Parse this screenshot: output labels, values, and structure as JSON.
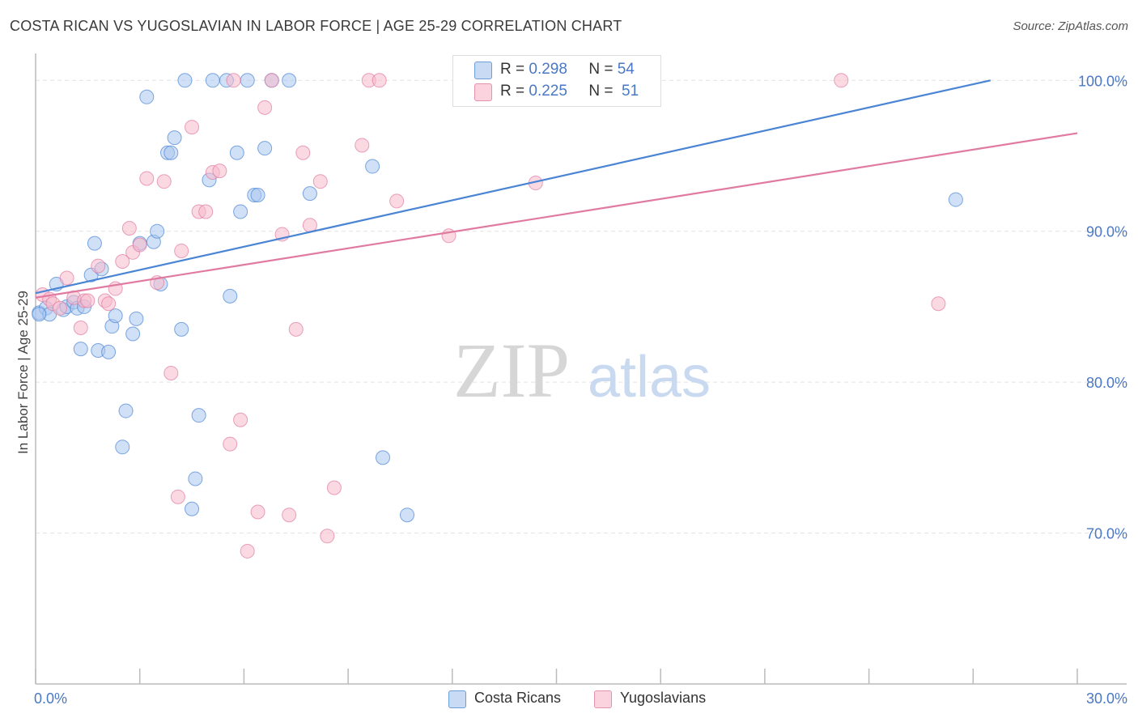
{
  "title": "COSTA RICAN VS YUGOSLAVIAN IN LABOR FORCE | AGE 25-29 CORRELATION CHART",
  "source": "Source: ZipAtlas.com",
  "watermark": {
    "zip": "ZIP",
    "atlas": "atlas"
  },
  "legend": {
    "r_label": "R =",
    "n_label": "N =",
    "rows": [
      {
        "r": "0.298",
        "n": "54",
        "color": "#a9c6ee"
      },
      {
        "r": "0.225",
        "n": "51",
        "color": "#f7b9cc"
      }
    ]
  },
  "chart_data": {
    "type": "scatter",
    "xlabel": "",
    "ylabel": "In Labor Force | Age 25-29",
    "xlim": [
      0,
      30
    ],
    "ylim": [
      60,
      102
    ],
    "x_tick_labels": [
      "0.0%",
      "30.0%"
    ],
    "y_ticks": [
      70,
      80,
      90,
      100
    ],
    "y_tick_labels": [
      "70.0%",
      "80.0%",
      "90.0%",
      "100.0%"
    ],
    "grid": true,
    "legend_position": "top-center",
    "series": [
      {
        "name": "Costa Ricans",
        "color": "#4a84d4",
        "fill": "#a9c6ee",
        "trend": {
          "x0": 0,
          "y0": 85.9,
          "x1": 27.5,
          "y1": 100
        },
        "points": [
          [
            0.1,
            84.6
          ],
          [
            0.3,
            84.9
          ],
          [
            0.4,
            84.5
          ],
          [
            0.6,
            86.5
          ],
          [
            0.8,
            84.8
          ],
          [
            0.9,
            85.0
          ],
          [
            1.1,
            85.3
          ],
          [
            1.2,
            84.9
          ],
          [
            1.4,
            85.0
          ],
          [
            1.6,
            87.1
          ],
          [
            1.7,
            89.2
          ],
          [
            1.9,
            87.5
          ],
          [
            1.3,
            82.2
          ],
          [
            1.8,
            82.1
          ],
          [
            2.1,
            82.0
          ],
          [
            2.2,
            83.7
          ],
          [
            2.3,
            84.4
          ],
          [
            2.5,
            75.7
          ],
          [
            2.6,
            78.1
          ],
          [
            2.8,
            83.2
          ],
          [
            2.9,
            84.2
          ],
          [
            3.0,
            89.2
          ],
          [
            3.2,
            98.9
          ],
          [
            3.4,
            89.3
          ],
          [
            3.5,
            90.0
          ],
          [
            3.6,
            86.5
          ],
          [
            3.8,
            95.2
          ],
          [
            3.9,
            95.2
          ],
          [
            4.0,
            96.2
          ],
          [
            4.2,
            83.5
          ],
          [
            4.3,
            100.0
          ],
          [
            4.5,
            71.6
          ],
          [
            4.6,
            73.6
          ],
          [
            4.7,
            77.8
          ],
          [
            5.1,
            100.0
          ],
          [
            5.0,
            93.4
          ],
          [
            5.5,
            100.0
          ],
          [
            5.6,
            85.7
          ],
          [
            5.8,
            95.2
          ],
          [
            5.9,
            91.3
          ],
          [
            6.1,
            100.0
          ],
          [
            6.3,
            92.4
          ],
          [
            6.4,
            92.4
          ],
          [
            6.6,
            95.5
          ],
          [
            6.8,
            100.0
          ],
          [
            7.3,
            100.0
          ],
          [
            7.9,
            92.5
          ],
          [
            9.7,
            94.3
          ],
          [
            10.0,
            75.0
          ],
          [
            10.7,
            71.2
          ],
          [
            15.4,
            100.0
          ],
          [
            16.5,
            100.0
          ],
          [
            26.5,
            92.1
          ],
          [
            0.1,
            84.5
          ]
        ]
      },
      {
        "name": "Yugoslavians",
        "color": "#e07aa0",
        "fill": "#f7b9cc",
        "trend": {
          "x0": 0,
          "y0": 85.6,
          "x1": 30,
          "y1": 96.5
        },
        "points": [
          [
            0.2,
            85.8
          ],
          [
            0.4,
            85.5
          ],
          [
            0.5,
            85.2
          ],
          [
            0.7,
            84.9
          ],
          [
            0.9,
            86.9
          ],
          [
            1.1,
            85.6
          ],
          [
            1.3,
            83.6
          ],
          [
            1.4,
            85.4
          ],
          [
            1.5,
            85.4
          ],
          [
            1.8,
            87.7
          ],
          [
            2.0,
            85.4
          ],
          [
            2.1,
            85.2
          ],
          [
            2.3,
            86.2
          ],
          [
            2.5,
            88.0
          ],
          [
            2.7,
            90.2
          ],
          [
            2.8,
            88.6
          ],
          [
            3.0,
            89.1
          ],
          [
            3.2,
            93.5
          ],
          [
            3.5,
            86.6
          ],
          [
            3.7,
            93.3
          ],
          [
            3.9,
            80.6
          ],
          [
            4.1,
            72.4
          ],
          [
            4.2,
            88.7
          ],
          [
            4.5,
            96.9
          ],
          [
            4.7,
            91.3
          ],
          [
            4.9,
            91.3
          ],
          [
            5.1,
            93.9
          ],
          [
            5.3,
            94.0
          ],
          [
            5.6,
            75.9
          ],
          [
            5.7,
            100.0
          ],
          [
            5.9,
            77.5
          ],
          [
            6.1,
            68.8
          ],
          [
            6.4,
            71.4
          ],
          [
            6.6,
            98.2
          ],
          [
            6.8,
            100.0
          ],
          [
            7.1,
            89.8
          ],
          [
            7.3,
            71.2
          ],
          [
            7.5,
            83.5
          ],
          [
            7.7,
            95.2
          ],
          [
            7.9,
            90.4
          ],
          [
            8.2,
            93.3
          ],
          [
            8.4,
            69.8
          ],
          [
            8.6,
            73.0
          ],
          [
            9.4,
            95.7
          ],
          [
            9.6,
            100.0
          ],
          [
            9.9,
            100.0
          ],
          [
            10.4,
            92.0
          ],
          [
            11.9,
            89.7
          ],
          [
            14.4,
            93.2
          ],
          [
            23.2,
            100.0
          ],
          [
            26.0,
            85.2
          ]
        ]
      }
    ]
  }
}
